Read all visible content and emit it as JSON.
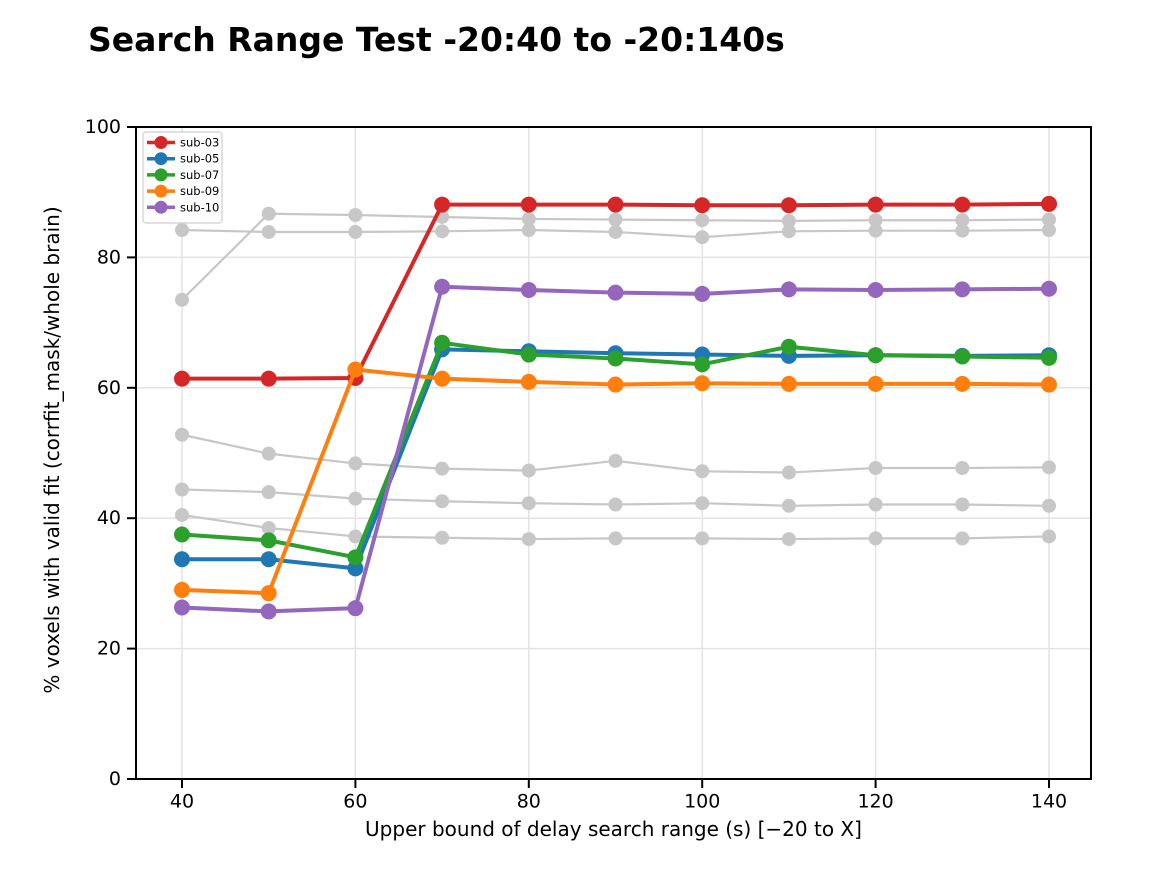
{
  "chart_data": {
    "type": "line",
    "title": "Search Range Test -20:40 to -20:140s",
    "xlabel": "Upper bound of delay search range (s)  [−20 to X]",
    "ylabel": "% voxels with valid fit (corrfit_mask/whole brain)",
    "x": [
      40,
      50,
      60,
      70,
      80,
      90,
      100,
      110,
      120,
      130,
      140
    ],
    "xticks": [
      40,
      60,
      80,
      100,
      120,
      140
    ],
    "yticks": [
      0,
      20,
      40,
      60,
      80,
      100
    ],
    "xlim": [
      34,
      145
    ],
    "ylim": [
      0,
      100
    ],
    "grid": true,
    "legend_position": "upper left",
    "series": [
      {
        "name": "sub-03",
        "color": "#d62728",
        "values": [
          61.4,
          61.4,
          61.5,
          88.1,
          88.1,
          88.1,
          88.0,
          88.0,
          88.1,
          88.1,
          88.2
        ]
      },
      {
        "name": "sub-05",
        "color": "#1f77b4",
        "values": [
          33.7,
          33.7,
          32.3,
          65.9,
          65.6,
          65.3,
          65.1,
          64.9,
          65.0,
          64.9,
          65.0
        ]
      },
      {
        "name": "sub-07",
        "color": "#2ca02c",
        "values": [
          37.5,
          36.6,
          34.0,
          66.9,
          65.1,
          64.5,
          63.6,
          66.3,
          65.0,
          64.8,
          64.6
        ]
      },
      {
        "name": "sub-09",
        "color": "#ff7f0e",
        "values": [
          29.0,
          28.5,
          62.8,
          61.4,
          60.9,
          60.5,
          60.7,
          60.6,
          60.6,
          60.6,
          60.5
        ]
      },
      {
        "name": "sub-10",
        "color": "#9467bd",
        "values": [
          26.3,
          25.7,
          26.2,
          75.5,
          75.0,
          74.6,
          74.4,
          75.1,
          75.0,
          75.1,
          75.2
        ]
      }
    ],
    "background_series": [
      {
        "name": "unlabeled-gray-1",
        "color": "#c7c7c7",
        "values": [
          73.5,
          86.7,
          86.5,
          86.2,
          85.9,
          85.8,
          85.7,
          85.6,
          85.7,
          85.7,
          85.8
        ]
      },
      {
        "name": "unlabeled-gray-2",
        "color": "#c7c7c7",
        "values": [
          84.2,
          83.9,
          83.9,
          84.0,
          84.2,
          83.9,
          83.1,
          84.0,
          84.1,
          84.1,
          84.2
        ]
      },
      {
        "name": "unlabeled-gray-3",
        "color": "#c7c7c7",
        "values": [
          52.8,
          49.9,
          48.4,
          47.6,
          47.3,
          48.8,
          47.2,
          47.0,
          47.7,
          47.7,
          47.8
        ]
      },
      {
        "name": "unlabeled-gray-4",
        "color": "#c7c7c7",
        "values": [
          44.4,
          44.0,
          43.0,
          42.6,
          42.3,
          42.1,
          42.3,
          41.9,
          42.1,
          42.1,
          41.9
        ]
      },
      {
        "name": "unlabeled-gray-5",
        "color": "#c7c7c7",
        "values": [
          40.5,
          38.5,
          37.2,
          37.0,
          36.8,
          36.9,
          36.9,
          36.8,
          36.9,
          36.9,
          37.2
        ]
      }
    ],
    "grid_color": "#e3e3e3",
    "spine_color": "#000000",
    "legend_border_color": "#cfcfcf"
  }
}
